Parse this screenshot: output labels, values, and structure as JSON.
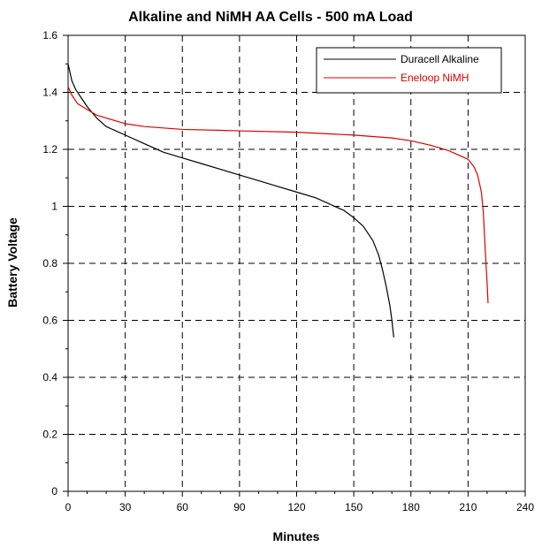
{
  "chart_data": {
    "type": "line",
    "title": "Alkaline and NiMH AA Cells - 500 mA Load",
    "xlabel": "Minutes",
    "ylabel": "Battery Voltage",
    "xlim": [
      0,
      240
    ],
    "ylim": [
      0,
      1.6
    ],
    "x_ticks": [
      0,
      30,
      60,
      90,
      120,
      150,
      180,
      210,
      240
    ],
    "x_tick_labels": [
      "0",
      "30",
      "60",
      "90",
      "120",
      "150",
      "180",
      "210",
      "240"
    ],
    "y_ticks": [
      0,
      0.2,
      0.4,
      0.6,
      0.8,
      1.0,
      1.2,
      1.4,
      1.6
    ],
    "y_tick_labels": [
      "0",
      "0.2",
      "0.4",
      "0.6",
      "0.8",
      "1",
      "1.2",
      "1.4",
      "1.6"
    ],
    "grid": true,
    "grid_style": "dashed",
    "legend_position": "top-right",
    "series": [
      {
        "name": "Duracell Alkaline",
        "color": "#000000",
        "x": [
          0,
          1,
          2,
          4,
          6,
          10,
          15,
          20,
          30,
          40,
          50,
          60,
          70,
          80,
          90,
          100,
          110,
          120,
          130,
          140,
          145,
          150,
          155,
          160,
          163,
          165,
          167,
          169,
          170,
          171
        ],
        "y": [
          1.5,
          1.47,
          1.44,
          1.41,
          1.39,
          1.35,
          1.31,
          1.28,
          1.25,
          1.22,
          1.19,
          1.17,
          1.15,
          1.13,
          1.11,
          1.09,
          1.07,
          1.05,
          1.03,
          1.0,
          0.985,
          0.96,
          0.93,
          0.88,
          0.83,
          0.78,
          0.72,
          0.65,
          0.6,
          0.54
        ]
      },
      {
        "name": "Eneloop NiMH",
        "color": "#dd0000",
        "x": [
          0,
          2,
          5,
          10,
          15,
          20,
          30,
          40,
          50,
          60,
          90,
          120,
          150,
          170,
          180,
          190,
          200,
          205,
          210,
          213,
          215,
          217,
          218,
          219,
          220,
          220.5
        ],
        "y": [
          1.42,
          1.39,
          1.36,
          1.34,
          1.32,
          1.31,
          1.29,
          1.28,
          1.275,
          1.27,
          1.265,
          1.26,
          1.25,
          1.24,
          1.23,
          1.215,
          1.195,
          1.18,
          1.165,
          1.14,
          1.11,
          1.05,
          0.98,
          0.85,
          0.73,
          0.66
        ]
      }
    ]
  }
}
